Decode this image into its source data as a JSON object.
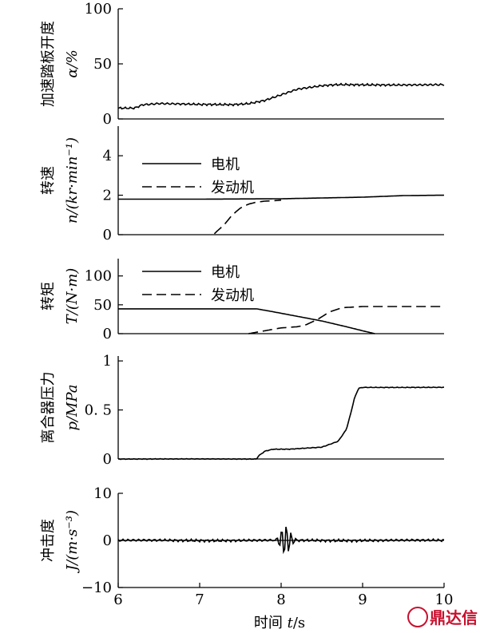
{
  "chart_data": [
    {
      "type": "line",
      "id": "pedal",
      "ylabel": "加速踏板开度",
      "yunit": "α/%",
      "ylim": [
        0,
        100
      ],
      "yticks": [
        0,
        50,
        100
      ],
      "ytick_labels": [
        "0",
        "50",
        "100"
      ],
      "series": [
        {
          "style": "solid",
          "noise": 1.2,
          "x": [
            6.0,
            6.2,
            6.3,
            6.5,
            7.0,
            7.4,
            7.6,
            7.8,
            8.0,
            8.2,
            8.5,
            8.7,
            9.0,
            9.5,
            10.0
          ],
          "y": [
            10,
            10,
            13,
            14,
            13,
            13,
            14,
            17,
            22,
            27,
            30,
            31,
            31,
            31,
            31
          ]
        }
      ]
    },
    {
      "type": "line",
      "id": "speed",
      "ylabel": "转速",
      "yunit": "n/(kr·min⁻¹)",
      "ylim": [
        0,
        5.5
      ],
      "yticks": [
        0,
        2,
        4
      ],
      "ytick_labels": [
        "0",
        "2",
        "4"
      ],
      "legend": [
        "电机",
        "发动机"
      ],
      "series": [
        {
          "name": "电机",
          "style": "solid",
          "noise": 0.0,
          "x": [
            6.0,
            7.0,
            8.0,
            9.0,
            9.5,
            10.0
          ],
          "y": [
            1.8,
            1.8,
            1.82,
            1.9,
            1.98,
            2.0
          ]
        },
        {
          "name": "发动机",
          "style": "dashed",
          "noise": 0.0,
          "x": [
            7.18,
            7.3,
            7.4,
            7.5,
            7.6,
            7.7,
            7.8,
            7.9,
            8.0
          ],
          "y": [
            0.05,
            0.5,
            1.0,
            1.35,
            1.55,
            1.65,
            1.7,
            1.72,
            1.75
          ]
        }
      ]
    },
    {
      "type": "line",
      "id": "torque",
      "ylabel": "转矩",
      "yunit": "T/(N·m)",
      "ylim": [
        0,
        130
      ],
      "yticks": [
        0,
        50,
        100
      ],
      "ytick_labels": [
        "0",
        "50",
        "100"
      ],
      "legend": [
        "电机",
        "发动机"
      ],
      "series": [
        {
          "name": "电机",
          "style": "solid",
          "noise": 0.0,
          "x": [
            6.0,
            7.7,
            7.9,
            8.2,
            8.5,
            8.8,
            9.0,
            9.15
          ],
          "y": [
            43,
            43,
            38,
            30,
            22,
            12,
            5,
            0
          ]
        },
        {
          "name": "发动机",
          "style": "dashed",
          "noise": 0.0,
          "x": [
            7.6,
            7.8,
            8.0,
            8.2,
            8.3,
            8.45,
            8.6,
            8.75,
            9.0,
            10.0
          ],
          "y": [
            0,
            5,
            10,
            12,
            15,
            25,
            38,
            45,
            47,
            47
          ]
        }
      ]
    },
    {
      "type": "line",
      "id": "clutch",
      "ylabel": "离合器压力",
      "yunit": "p/MPa",
      "ylim": [
        0,
        1.05
      ],
      "yticks": [
        0,
        0.5,
        1
      ],
      "ytick_labels": [
        "0",
        "0. 5",
        "1"
      ],
      "series": [
        {
          "style": "solid",
          "noise": 0.004,
          "x": [
            6.0,
            7.7,
            7.72,
            7.8,
            7.9,
            8.1,
            8.3,
            8.5,
            8.7,
            8.8,
            8.85,
            8.9,
            8.95,
            9.0,
            10.0
          ],
          "y": [
            0,
            0,
            0.03,
            0.08,
            0.1,
            0.1,
            0.11,
            0.12,
            0.18,
            0.3,
            0.45,
            0.62,
            0.72,
            0.73,
            0.73
          ]
        }
      ]
    },
    {
      "type": "line",
      "id": "jerk",
      "ylabel": "冲击度",
      "yunit": "J/(m·s⁻³)",
      "ylim": [
        -10,
        10
      ],
      "yticks": [
        -10,
        0,
        10
      ],
      "ytick_labels": [
        "−10",
        "0",
        "10"
      ],
      "series": [
        {
          "style": "solid",
          "noise": 0.35,
          "burst": [
            8.05,
            3.2
          ],
          "x": [
            6.0,
            10.0
          ],
          "y": [
            0,
            0
          ]
        }
      ]
    }
  ],
  "xaxis": {
    "label": "时间",
    "unit_var": "t",
    "unit": "/s",
    "xlim": [
      6,
      10
    ],
    "ticks": [
      6,
      7,
      8,
      9,
      10
    ],
    "tick_labels": [
      "6",
      "7",
      "8",
      "9",
      "10"
    ]
  },
  "watermark": "鼎达信"
}
